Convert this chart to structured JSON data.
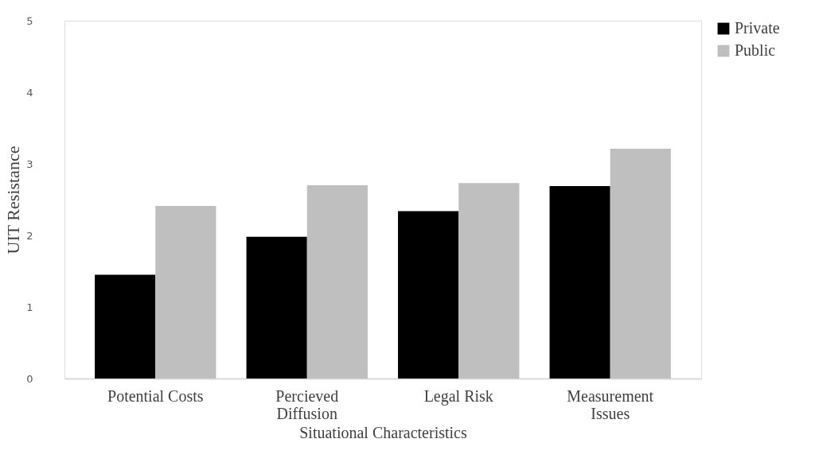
{
  "chart_data": {
    "type": "bar",
    "xlabel": "Situational Characteristics",
    "ylabel": "UIT Resistance",
    "categories": [
      "Potential Costs",
      "Percieved Diffusion",
      "Legal Risk",
      "Measurement Issues"
    ],
    "series": [
      {
        "name": "Private",
        "color": "#000000",
        "values": [
          1.45,
          1.98,
          2.34,
          2.69
        ]
      },
      {
        "name": "Public",
        "color": "#bfbfbf",
        "values": [
          2.41,
          2.7,
          2.73,
          3.21
        ]
      }
    ],
    "ylim": [
      0,
      5
    ],
    "yticks": [
      0,
      1,
      2,
      3,
      4,
      5
    ],
    "grid": false,
    "legend": "right"
  }
}
